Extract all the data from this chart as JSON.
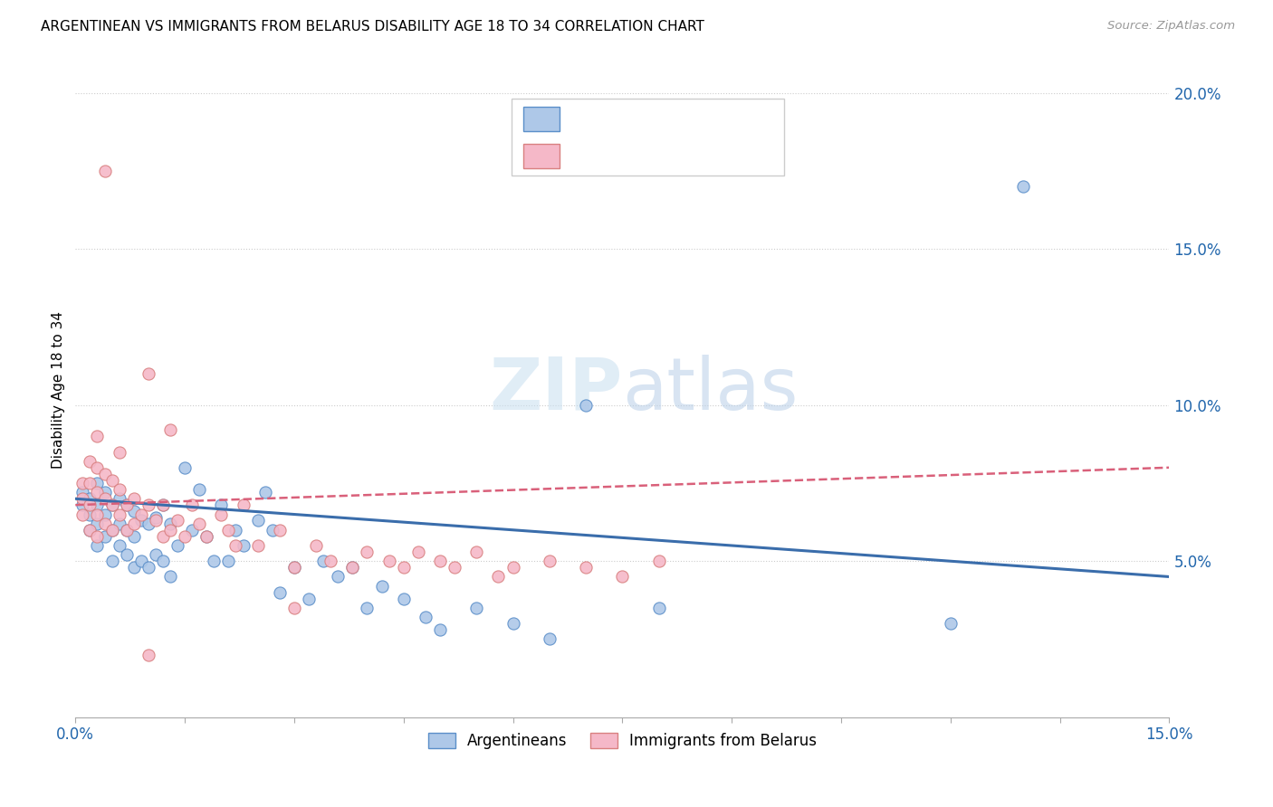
{
  "title": "ARGENTINEAN VS IMMIGRANTS FROM BELARUS DISABILITY AGE 18 TO 34 CORRELATION CHART",
  "source": "Source: ZipAtlas.com",
  "ylabel": "Disability Age 18 to 34",
  "xmin": 0.0,
  "xmax": 0.15,
  "ymin": 0.0,
  "ymax": 0.21,
  "right_yticks": [
    0.05,
    0.1,
    0.15,
    0.2
  ],
  "right_yticklabels": [
    "5.0%",
    "10.0%",
    "15.0%",
    "20.0%"
  ],
  "blue_color": "#aec8e8",
  "blue_edge_color": "#5b8fc9",
  "pink_color": "#f5b8c8",
  "pink_edge_color": "#d98080",
  "blue_line_color": "#3a6dab",
  "pink_line_color": "#d9607a",
  "watermark_color": "#c8dff0",
  "blue_scatter_x": [
    0.001,
    0.001,
    0.002,
    0.002,
    0.002,
    0.003,
    0.003,
    0.003,
    0.003,
    0.004,
    0.004,
    0.004,
    0.005,
    0.005,
    0.005,
    0.006,
    0.006,
    0.006,
    0.007,
    0.007,
    0.007,
    0.008,
    0.008,
    0.008,
    0.009,
    0.009,
    0.01,
    0.01,
    0.011,
    0.011,
    0.012,
    0.012,
    0.013,
    0.013,
    0.014,
    0.015,
    0.016,
    0.017,
    0.018,
    0.019,
    0.02,
    0.021,
    0.022,
    0.023,
    0.025,
    0.026,
    0.027,
    0.028,
    0.03,
    0.032,
    0.034,
    0.036,
    0.038,
    0.04,
    0.042,
    0.045,
    0.048,
    0.05,
    0.055,
    0.06,
    0.065,
    0.07,
    0.08,
    0.12,
    0.13
  ],
  "blue_scatter_y": [
    0.068,
    0.072,
    0.06,
    0.065,
    0.07,
    0.055,
    0.062,
    0.068,
    0.075,
    0.058,
    0.065,
    0.072,
    0.05,
    0.06,
    0.068,
    0.055,
    0.062,
    0.07,
    0.052,
    0.06,
    0.068,
    0.048,
    0.058,
    0.066,
    0.05,
    0.063,
    0.048,
    0.062,
    0.052,
    0.064,
    0.05,
    0.068,
    0.045,
    0.062,
    0.055,
    0.08,
    0.06,
    0.073,
    0.058,
    0.05,
    0.068,
    0.05,
    0.06,
    0.055,
    0.063,
    0.072,
    0.06,
    0.04,
    0.048,
    0.038,
    0.05,
    0.045,
    0.048,
    0.035,
    0.042,
    0.038,
    0.032,
    0.028,
    0.035,
    0.03,
    0.025,
    0.1,
    0.035,
    0.03,
    0.17
  ],
  "pink_scatter_x": [
    0.001,
    0.001,
    0.001,
    0.002,
    0.002,
    0.002,
    0.002,
    0.003,
    0.003,
    0.003,
    0.003,
    0.003,
    0.004,
    0.004,
    0.004,
    0.005,
    0.005,
    0.005,
    0.006,
    0.006,
    0.006,
    0.007,
    0.007,
    0.008,
    0.008,
    0.009,
    0.01,
    0.01,
    0.011,
    0.012,
    0.012,
    0.013,
    0.013,
    0.014,
    0.015,
    0.016,
    0.017,
    0.018,
    0.02,
    0.021,
    0.022,
    0.023,
    0.025,
    0.028,
    0.03,
    0.033,
    0.035,
    0.038,
    0.04,
    0.043,
    0.045,
    0.047,
    0.05,
    0.052,
    0.055,
    0.058,
    0.06,
    0.065,
    0.07,
    0.075,
    0.08,
    0.01,
    0.004,
    0.03
  ],
  "pink_scatter_y": [
    0.065,
    0.07,
    0.075,
    0.06,
    0.068,
    0.075,
    0.082,
    0.058,
    0.065,
    0.072,
    0.08,
    0.09,
    0.062,
    0.07,
    0.078,
    0.06,
    0.068,
    0.076,
    0.065,
    0.073,
    0.085,
    0.06,
    0.068,
    0.062,
    0.07,
    0.065,
    0.068,
    0.11,
    0.063,
    0.058,
    0.068,
    0.06,
    0.092,
    0.063,
    0.058,
    0.068,
    0.062,
    0.058,
    0.065,
    0.06,
    0.055,
    0.068,
    0.055,
    0.06,
    0.048,
    0.055,
    0.05,
    0.048,
    0.053,
    0.05,
    0.048,
    0.053,
    0.05,
    0.048,
    0.053,
    0.045,
    0.048,
    0.05,
    0.048,
    0.045,
    0.05,
    0.02,
    0.175,
    0.035
  ]
}
